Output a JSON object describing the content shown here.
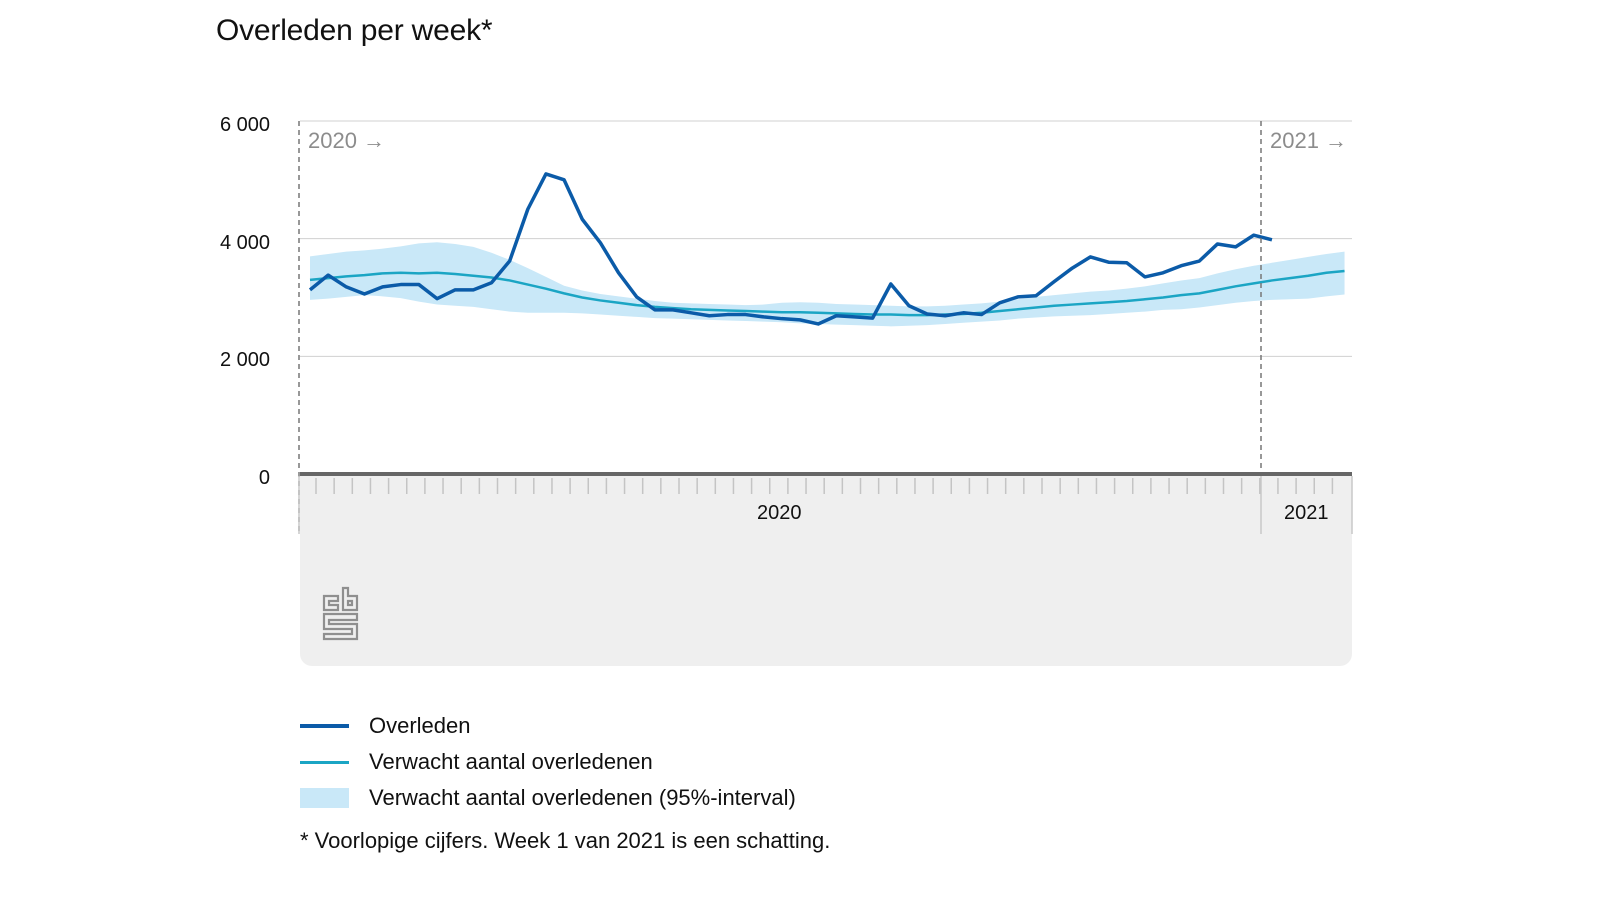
{
  "title": "Overleden per week*",
  "colors": {
    "overleden": "#0b5ba8",
    "verwacht": "#1ba5c4",
    "interval": "#c9e8f8",
    "axis_panel": "#efefef",
    "gridline": "#d0d0d0",
    "period_label": "#8c8c8c"
  },
  "y_axis": {
    "ticks": [
      "6 000",
      "4 000",
      "2 000",
      "0"
    ]
  },
  "x_axis": {
    "year_labels": [
      "2020",
      "2021"
    ]
  },
  "period_markers": [
    "2020 →",
    "2021 →"
  ],
  "legend": {
    "items": [
      {
        "label": "Overleden",
        "type": "line-thick"
      },
      {
        "label": "Verwacht aantal overledenen",
        "type": "line-thin"
      },
      {
        "label": "Verwacht aantal overledenen (95%-interval)",
        "type": "band"
      }
    ]
  },
  "footnote": "* Voorlopige cijfers. Week 1 van 2021 is een schatting.",
  "logo": {
    "name": "cbs-logo"
  },
  "chart_data": {
    "type": "line",
    "title": "Overleden per week*",
    "xlabel": "",
    "ylabel": "",
    "ylim": [
      0,
      6000
    ],
    "yticks": [
      0,
      2000,
      4000,
      6000
    ],
    "grid": true,
    "legend_position": "bottom",
    "x": [
      "2020-W01",
      "2020-W02",
      "2020-W03",
      "2020-W04",
      "2020-W05",
      "2020-W06",
      "2020-W07",
      "2020-W08",
      "2020-W09",
      "2020-W10",
      "2020-W11",
      "2020-W12",
      "2020-W13",
      "2020-W14",
      "2020-W15",
      "2020-W16",
      "2020-W17",
      "2020-W18",
      "2020-W19",
      "2020-W20",
      "2020-W21",
      "2020-W22",
      "2020-W23",
      "2020-W24",
      "2020-W25",
      "2020-W26",
      "2020-W27",
      "2020-W28",
      "2020-W29",
      "2020-W30",
      "2020-W31",
      "2020-W32",
      "2020-W33",
      "2020-W34",
      "2020-W35",
      "2020-W36",
      "2020-W37",
      "2020-W38",
      "2020-W39",
      "2020-W40",
      "2020-W41",
      "2020-W42",
      "2020-W43",
      "2020-W44",
      "2020-W45",
      "2020-W46",
      "2020-W47",
      "2020-W48",
      "2020-W49",
      "2020-W50",
      "2020-W51",
      "2020-W52",
      "2020-W53",
      "2021-W01",
      "2021-W02",
      "2021-W03",
      "2021-W04",
      "2021-W05"
    ],
    "series": [
      {
        "name": "Overleden",
        "values": [
          3130,
          3380,
          3180,
          3060,
          3180,
          3220,
          3220,
          2980,
          3130,
          3130,
          3250,
          3620,
          4500,
          5100,
          5000,
          4330,
          3930,
          3420,
          3010,
          2790,
          2790,
          2740,
          2690,
          2710,
          2710,
          2670,
          2640,
          2620,
          2550,
          2690,
          2670,
          2650,
          3230,
          2860,
          2720,
          2690,
          2740,
          2710,
          2910,
          3010,
          3030,
          3270,
          3500,
          3690,
          3600,
          3590,
          3350,
          3420,
          3540,
          3620,
          3910,
          3860,
          4060,
          3980,
          null,
          null,
          null,
          null
        ]
      },
      {
        "name": "Verwacht aantal overledenen",
        "values": [
          3300,
          3330,
          3360,
          3380,
          3410,
          3420,
          3410,
          3420,
          3400,
          3370,
          3340,
          3290,
          3220,
          3150,
          3070,
          3000,
          2950,
          2910,
          2870,
          2840,
          2820,
          2800,
          2790,
          2780,
          2770,
          2760,
          2750,
          2750,
          2740,
          2730,
          2720,
          2710,
          2710,
          2700,
          2700,
          2710,
          2720,
          2740,
          2770,
          2800,
          2830,
          2860,
          2880,
          2900,
          2920,
          2940,
          2970,
          3000,
          3040,
          3070,
          3130,
          3190,
          3240,
          3290,
          3330,
          3370,
          3420,
          3450
        ]
      },
      {
        "name": "Verwacht aantal overledenen (95%-interval) upper",
        "values": [
          3700,
          3740,
          3780,
          3800,
          3830,
          3870,
          3920,
          3940,
          3910,
          3860,
          3760,
          3640,
          3500,
          3350,
          3200,
          3120,
          3060,
          3020,
          2980,
          2940,
          2910,
          2900,
          2890,
          2880,
          2870,
          2880,
          2910,
          2920,
          2910,
          2890,
          2880,
          2870,
          2860,
          2850,
          2850,
          2860,
          2880,
          2900,
          2930,
          2970,
          3010,
          3040,
          3070,
          3100,
          3120,
          3150,
          3190,
          3240,
          3290,
          3330,
          3410,
          3480,
          3540,
          3590,
          3640,
          3690,
          3740,
          3780
        ]
      },
      {
        "name": "Verwacht aantal overledenen (95%-interval) lower",
        "values": [
          2960,
          2980,
          3010,
          3040,
          3020,
          2990,
          2930,
          2880,
          2860,
          2840,
          2800,
          2760,
          2740,
          2740,
          2740,
          2730,
          2710,
          2690,
          2670,
          2650,
          2640,
          2630,
          2620,
          2610,
          2600,
          2590,
          2580,
          2560,
          2550,
          2540,
          2530,
          2520,
          2510,
          2520,
          2530,
          2550,
          2570,
          2590,
          2610,
          2640,
          2660,
          2680,
          2690,
          2700,
          2720,
          2740,
          2760,
          2790,
          2800,
          2830,
          2870,
          2910,
          2940,
          2960,
          2970,
          2980,
          3020,
          3050
        ]
      }
    ]
  }
}
